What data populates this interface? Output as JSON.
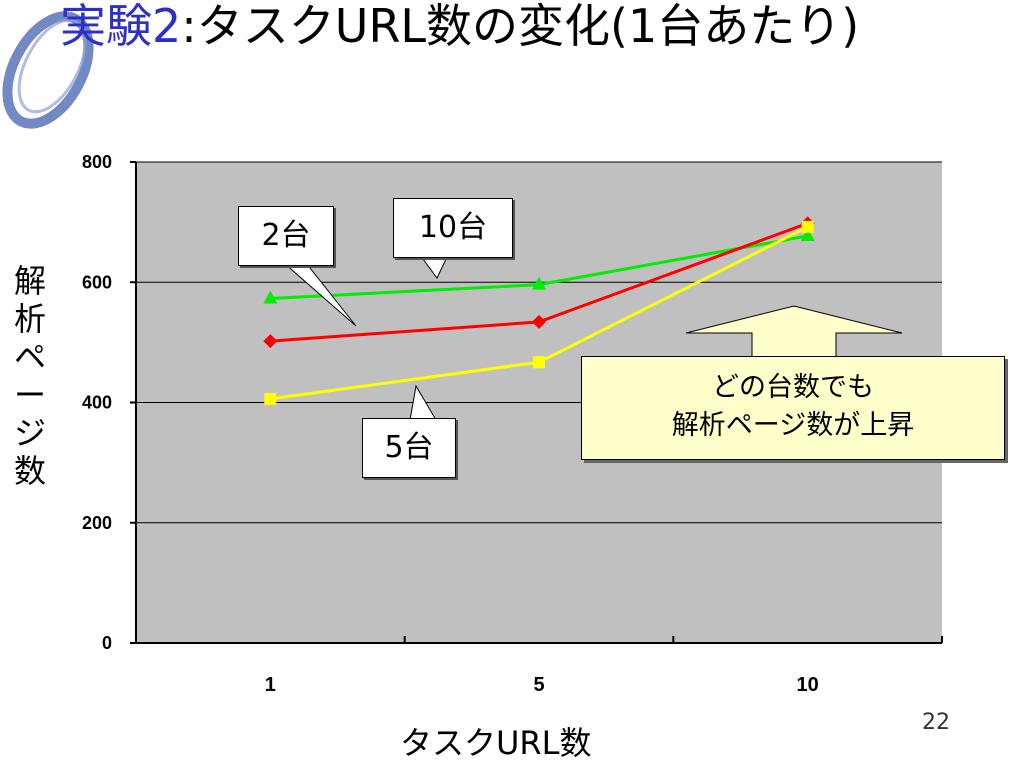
{
  "slide": {
    "title_accent": "実験2",
    "title_rest": ":タスクURL数の変化(1台あたり)",
    "page_number": "22"
  },
  "callouts": {
    "two": "2台",
    "ten": "10台",
    "five": "5台",
    "note_line1": "どの台数でも",
    "note_line2": "解析ページ数が上昇"
  },
  "colors": {
    "plot_bg": "#c0c0c0",
    "two_units": "#ff0000",
    "five_units": "#ffff00",
    "ten_units": "#00ee00",
    "note_bg": "#ffffcc",
    "title_accent": "#2e2ec8"
  },
  "chart_data": {
    "type": "line",
    "title": "",
    "xlabel": "タスクURL数",
    "ylabel": "解析ページ数",
    "categories": [
      "1",
      "5",
      "10"
    ],
    "ylim": [
      0,
      800
    ],
    "yticks": [
      "0",
      "200",
      "400",
      "600",
      "800"
    ],
    "grid": true,
    "series": [
      {
        "key": "ten_units",
        "label_ref": "10台",
        "marker": "triangle",
        "values": [
          573,
          596,
          677
        ]
      },
      {
        "key": "two_units",
        "label_ref": "2台",
        "marker": "diamond",
        "values": [
          502,
          534,
          698
        ]
      },
      {
        "key": "five_units",
        "label_ref": "5台",
        "marker": "square",
        "values": [
          406,
          467,
          692
        ]
      }
    ]
  }
}
